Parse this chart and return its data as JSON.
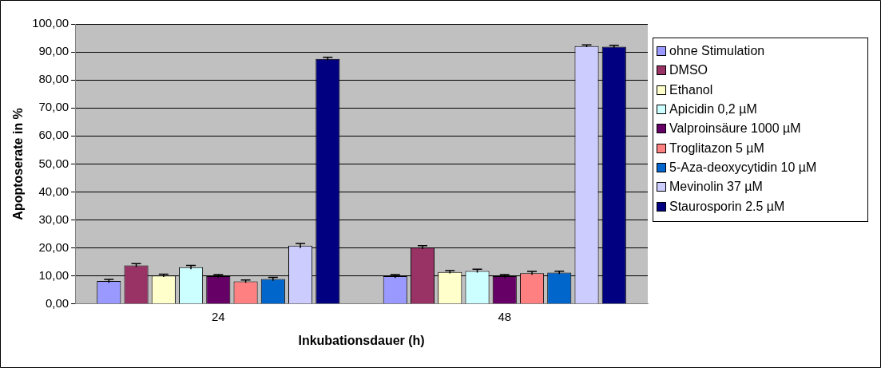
{
  "chart_data": {
    "type": "bar",
    "xlabel": "Inkubationsdauer (h)",
    "ylabel": "Apoptoserate in %",
    "categories": [
      "24",
      "48"
    ],
    "series": [
      {
        "name": "ohne Stimulation",
        "color": "#9999ff",
        "values": [
          8.2,
          9.9
        ],
        "errors": [
          0.6,
          0.6
        ]
      },
      {
        "name": "DMSO",
        "color": "#993366",
        "values": [
          13.8,
          20.2
        ],
        "errors": [
          0.6,
          0.6
        ]
      },
      {
        "name": "Ethanol",
        "color": "#ffffcc",
        "values": [
          10.1,
          11.4
        ],
        "errors": [
          0.5,
          0.5
        ]
      },
      {
        "name": "Apicidin 0,2 µM",
        "color": "#ccffff",
        "values": [
          13.1,
          11.8
        ],
        "errors": [
          0.7,
          0.6
        ]
      },
      {
        "name": "Valproinsäure 1000 µM",
        "color": "#660066",
        "values": [
          9.9,
          9.9
        ],
        "errors": [
          0.6,
          0.6
        ]
      },
      {
        "name": "Troglitazon 5 µM",
        "color": "#ff8080",
        "values": [
          8.1,
          11.0
        ],
        "errors": [
          0.5,
          0.6
        ]
      },
      {
        "name": "5-Aza-deoxycytidin 10 µM",
        "color": "#0066cc",
        "values": [
          8.9,
          11.2
        ],
        "errors": [
          0.6,
          0.5
        ]
      },
      {
        "name": "Mevinolin 37 µM",
        "color": "#ccccff",
        "values": [
          20.8,
          92.1
        ],
        "errors": [
          0.8,
          0.4
        ]
      },
      {
        "name": "Staurosporin 2.5 µM",
        "color": "#000080",
        "values": [
          87.5,
          91.9
        ],
        "errors": [
          0.6,
          0.5
        ]
      }
    ],
    "ylim": [
      0,
      100
    ],
    "yticks": [
      {
        "value": 0,
        "label": "0,00"
      },
      {
        "value": 10,
        "label": "10,00"
      },
      {
        "value": 20,
        "label": "20,00"
      },
      {
        "value": 30,
        "label": "30,00"
      },
      {
        "value": 40,
        "label": "40,00"
      },
      {
        "value": 50,
        "label": "50,00"
      },
      {
        "value": 60,
        "label": "60,00"
      },
      {
        "value": 70,
        "label": "70,00"
      },
      {
        "value": 80,
        "label": "80,00"
      },
      {
        "value": 90,
        "label": "90,00"
      },
      {
        "value": 100,
        "label": "100,00"
      }
    ],
    "grid": "y",
    "legend": "right"
  }
}
